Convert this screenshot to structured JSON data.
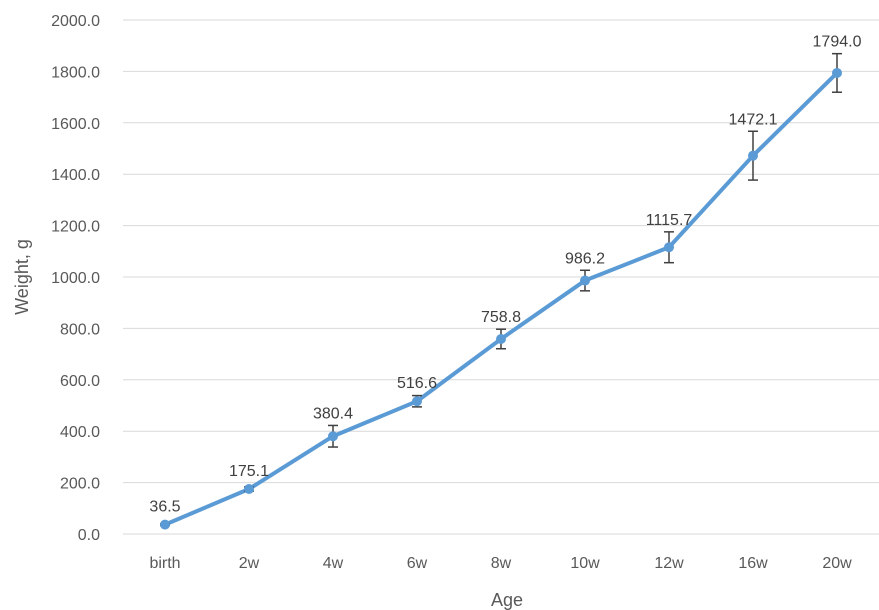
{
  "chart_data": {
    "type": "line",
    "title": "",
    "xlabel": "Age",
    "ylabel": "Weight, g",
    "categories": [
      "birth",
      "2w",
      "4w",
      "6w",
      "8w",
      "10w",
      "12w",
      "16w",
      "20w"
    ],
    "series": [
      {
        "values": [
          36.5,
          175.1,
          380.4,
          516.6,
          758.8,
          986.2,
          1115.7,
          1472.1,
          1794.0
        ],
        "value_labels": [
          "36.5",
          "175.1",
          "380.4",
          "516.6",
          "758.8",
          "986.2",
          "1115.7",
          "1472.1",
          "1794.0"
        ],
        "error": [
          3,
          8,
          42,
          22,
          38,
          40,
          60,
          95,
          75
        ],
        "color": "#5B9BD5"
      }
    ],
    "ylim": [
      0,
      2000
    ],
    "yticks": [
      0,
      200,
      400,
      600,
      800,
      1000,
      1200,
      1400,
      1600,
      1800,
      2000
    ],
    "ytick_labels": [
      "0.0",
      "200.0",
      "400.0",
      "600.0",
      "800.0",
      "1000.0",
      "1200.0",
      "1400.0",
      "1600.0",
      "1800.0",
      "2000.0"
    ],
    "grid": true,
    "legend": "none",
    "colors": {
      "line": "#5B9BD5",
      "grid": "#D9D9D9",
      "error_bar": "#404040"
    }
  }
}
